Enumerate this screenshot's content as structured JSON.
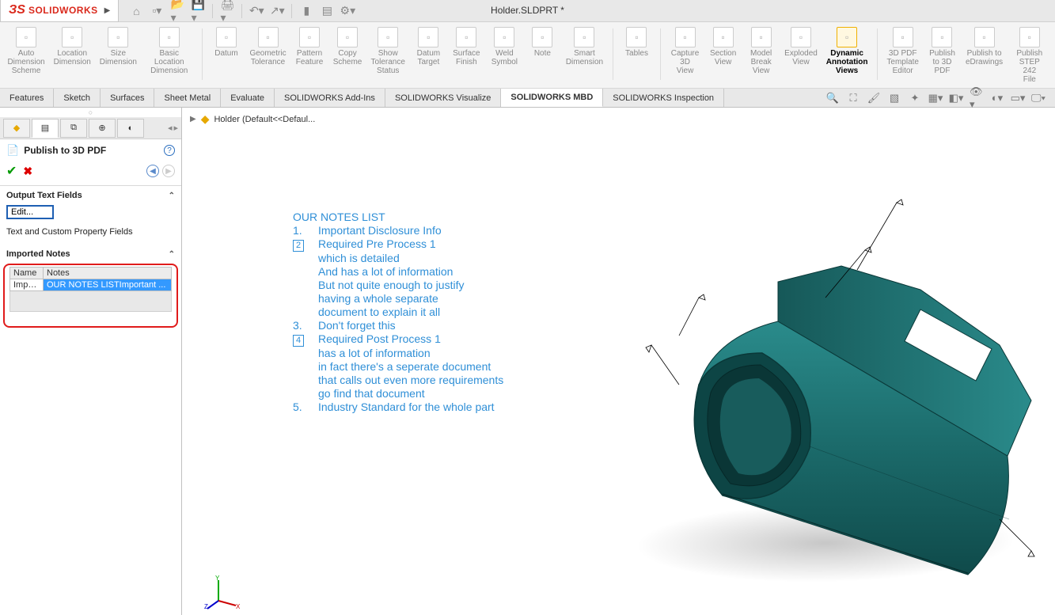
{
  "titlebar": {
    "document_title": "Holder.SLDPRT *",
    "logo_text": "SOLIDWORKS"
  },
  "ribbon": {
    "items": [
      {
        "label": "Auto\nDimension\nScheme"
      },
      {
        "label": "Location\nDimension"
      },
      {
        "label": "Size\nDimension"
      },
      {
        "label": "Basic Location\nDimension"
      },
      {
        "label": "Datum"
      },
      {
        "label": "Geometric\nTolerance"
      },
      {
        "label": "Pattern\nFeature"
      },
      {
        "label": "Copy\nScheme"
      },
      {
        "label": "Show\nTolerance\nStatus"
      },
      {
        "label": "Datum\nTarget"
      },
      {
        "label": "Surface\nFinish"
      },
      {
        "label": "Weld\nSymbol"
      },
      {
        "label": "Note"
      },
      {
        "label": "Smart\nDimension"
      },
      {
        "label": "Tables"
      },
      {
        "label": "Capture\n3D View"
      },
      {
        "label": "Section\nView"
      },
      {
        "label": "Model\nBreak\nView"
      },
      {
        "label": "Exploded\nView"
      },
      {
        "label": "Dynamic\nAnnotation\nViews",
        "active": true
      },
      {
        "label": "3D PDF\nTemplate\nEditor"
      },
      {
        "label": "Publish\nto 3D\nPDF"
      },
      {
        "label": "Publish to\neDrawings"
      },
      {
        "label": "Publish\nSTEP 242\nFile"
      }
    ],
    "group_separators_after": [
      3,
      13,
      14,
      19
    ]
  },
  "tabs": {
    "items": [
      {
        "label": "Features"
      },
      {
        "label": "Sketch"
      },
      {
        "label": "Surfaces"
      },
      {
        "label": "Sheet Metal"
      },
      {
        "label": "Evaluate"
      },
      {
        "label": "SOLIDWORKS Add-Ins"
      },
      {
        "label": "SOLIDWORKS Visualize"
      },
      {
        "label": "SOLIDWORKS MBD",
        "active": true
      },
      {
        "label": "SOLIDWORKS Inspection"
      }
    ]
  },
  "panel": {
    "title": "Publish to 3D PDF",
    "section_output": "Output Text Fields",
    "edit_label": "Edit...",
    "section_fields": "Text and Custom Property Fields",
    "section_imported": "Imported Notes",
    "table": {
      "col1": "Name",
      "col2": "Notes",
      "row1_col1": "Impo...",
      "row1_col2": "OUR NOTES LISTImportant ..."
    }
  },
  "breadcrumb": {
    "label": "Holder  (Default<<Defaul..."
  },
  "notes": {
    "title": "OUR NOTES LIST",
    "n1_num": "1.",
    "n1": "Important Disclosure Info",
    "n2_num": "2",
    "n2": "Required Pre Process 1",
    "n2a": "which is detailed",
    "n2b": "And has a lot of information",
    "n2c": "But not quite enough to justify",
    "n2d": "having a whole separate",
    "n2e": "document to explain it all",
    "n3_num": "3.",
    "n3": "Don't forget this",
    "n4_num": "4",
    "n4": "Required Post Process 1",
    "n4a": "has a lot of information",
    "n4b": "in fact there's a seperate document",
    "n4c": "that calls out even more requirements",
    "n4d": "go find that document",
    "n5_num": "5.",
    "n5": "Industry Standard for the whole part"
  },
  "colors": {
    "accent_blue": "#2f8fd7",
    "part_teal": "#1b6a6a",
    "part_teal_light": "#2a8b8b",
    "part_teal_dark": "#0f4a4a",
    "highlight_red": "#e01b1b",
    "select_blue": "#3399ff"
  },
  "triad": {
    "x": "X",
    "y": "Y",
    "z": "Z"
  }
}
